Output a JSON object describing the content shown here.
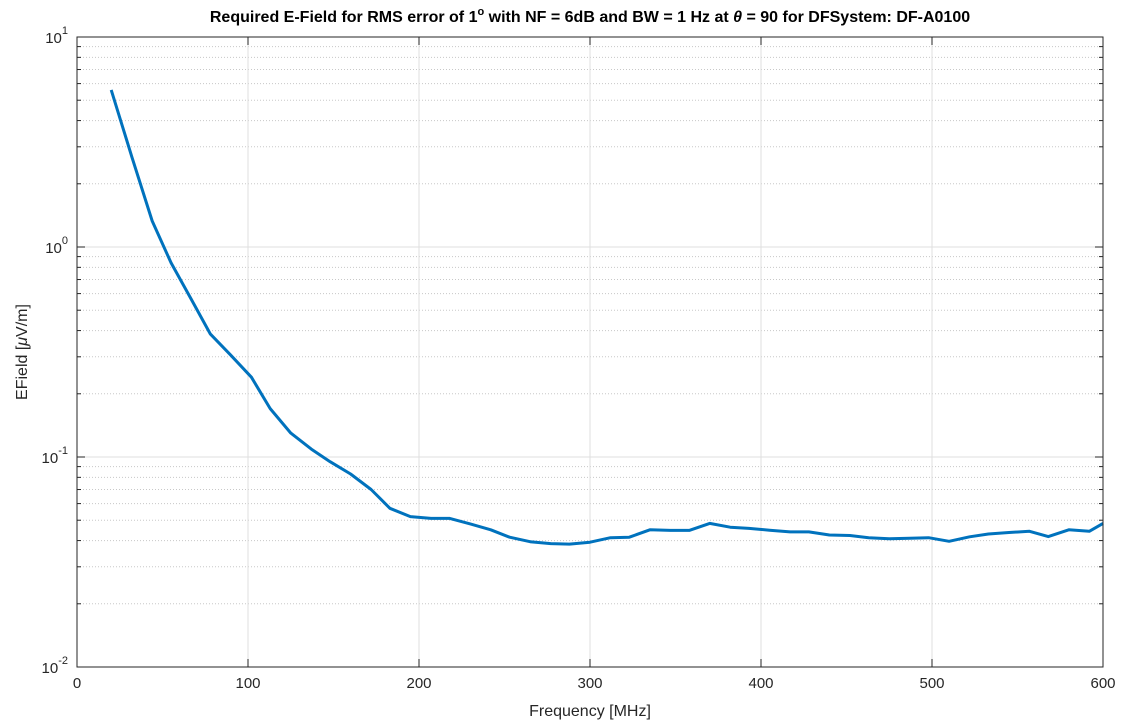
{
  "chart_data": {
    "type": "line",
    "title": "Required E-Field for RMS error of 1° with NF = 6dB and BW = 1 Hz at θ = 90 for DFSystem: DF-A0100",
    "title_parts": {
      "before_sup": "Required E-Field for RMS error of 1",
      "sup": "o",
      "middle": " with NF = 6dB and BW = 1 Hz at ",
      "theta": "θ",
      "after": " = 90 for DFSystem: DF-A0100"
    },
    "xlabel": "Frequency [MHz]",
    "ylabel_parts": {
      "before": "EField [",
      "mu": "μ",
      "after": "V/m]"
    },
    "ylabel": "EField [μV/m]",
    "xlim": [
      0,
      600
    ],
    "ylim": [
      0.01,
      10
    ],
    "yscale": "log",
    "grid": true,
    "x_ticks": [
      "0",
      "100",
      "200",
      "300",
      "400",
      "500",
      "600"
    ],
    "y_ticks": [
      {
        "base": "10",
        "exp": "-2"
      },
      {
        "base": "10",
        "exp": "-1"
      },
      {
        "base": "10",
        "exp": "0"
      },
      {
        "base": "10",
        "exp": "1"
      }
    ],
    "series": [
      {
        "color": "#0072bd",
        "x": [
          20,
          32,
          44,
          55,
          67,
          78,
          90,
          102,
          113,
          125,
          137,
          148,
          160,
          172,
          183,
          195,
          207,
          218,
          230,
          242,
          253,
          265,
          277,
          288,
          300,
          312,
          323,
          335,
          347,
          358,
          370,
          382,
          393,
          405,
          417,
          428,
          440,
          452,
          463,
          475,
          487,
          498,
          510,
          522,
          533,
          545,
          557,
          568,
          580,
          592,
          600
        ],
        "y": [
          5.6,
          2.7,
          1.33,
          0.84,
          0.56,
          0.385,
          0.305,
          0.24,
          0.17,
          0.13,
          0.109,
          0.095,
          0.083,
          0.07,
          0.057,
          0.052,
          0.051,
          0.051,
          0.048,
          0.045,
          0.0415,
          0.0395,
          0.0387,
          0.0385,
          0.0393,
          0.0413,
          0.0415,
          0.045,
          0.0447,
          0.0447,
          0.0483,
          0.0463,
          0.0457,
          0.0448,
          0.044,
          0.044,
          0.0425,
          0.0423,
          0.0413,
          0.0408,
          0.041,
          0.0413,
          0.0397,
          0.0417,
          0.043,
          0.0437,
          0.0443,
          0.0418,
          0.045,
          0.0443,
          0.0483
        ]
      }
    ]
  }
}
